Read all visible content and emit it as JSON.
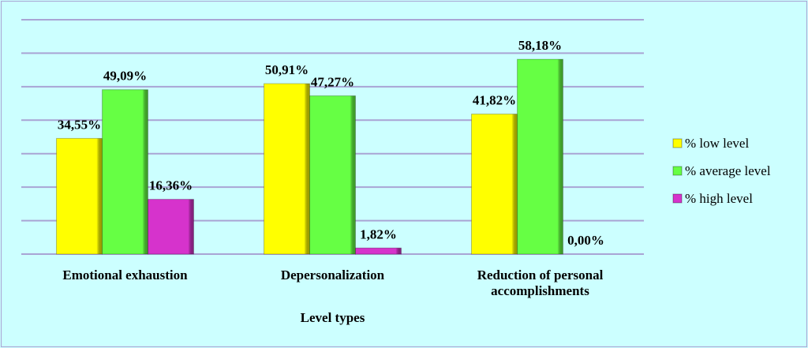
{
  "chart_data": {
    "type": "bar",
    "title": "",
    "xlabel": "Level types",
    "ylabel": "",
    "ylim": [
      0,
      70
    ],
    "grid": true,
    "legend_position": "right",
    "categories": [
      "Emotional exhaustion",
      "Depersonalization",
      "Reduction of personal accomplishments"
    ],
    "category_lines": [
      [
        "Emotional exhaustion"
      ],
      [
        "Depersonalization"
      ],
      [
        "Reduction of personal",
        "accomplishments"
      ]
    ],
    "series": [
      {
        "name": "% low level",
        "values": [
          34.55,
          50.91,
          41.82
        ],
        "labels": [
          "34,55%",
          "50,91%",
          "41,82%"
        ],
        "color": "#ffff00"
      },
      {
        "name": "% average level",
        "values": [
          49.09,
          47.27,
          58.18
        ],
        "labels": [
          "49,09%",
          "47,27%",
          "58,18%"
        ],
        "color": "#66ff44"
      },
      {
        "name": "% high level",
        "values": [
          16.36,
          1.82,
          0.0
        ],
        "labels": [
          "16,36%",
          "1,82%",
          "0,00%"
        ],
        "color": "#d633cc"
      }
    ],
    "colors": {
      "background": "#ccffff",
      "gridline": "#a9a4d4"
    }
  }
}
